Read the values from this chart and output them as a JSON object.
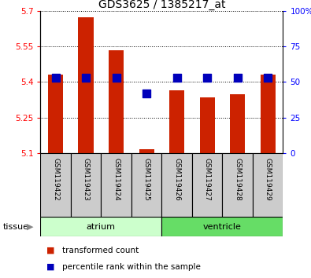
{
  "title": "GDS3625 / 1385217_at",
  "samples": [
    "GSM119422",
    "GSM119423",
    "GSM119424",
    "GSM119425",
    "GSM119426",
    "GSM119427",
    "GSM119428",
    "GSM119429"
  ],
  "red_values": [
    5.43,
    5.675,
    5.535,
    5.115,
    5.365,
    5.335,
    5.348,
    5.43
  ],
  "blue_values": [
    53,
    53,
    53,
    42,
    53,
    53,
    53,
    53
  ],
  "baseline": 5.1,
  "ylim_left": [
    5.1,
    5.7
  ],
  "ylim_right": [
    0,
    100
  ],
  "yticks_left": [
    5.1,
    5.25,
    5.4,
    5.55,
    5.7
  ],
  "yticks_right": [
    0,
    25,
    50,
    75,
    100
  ],
  "ytick_labels_left": [
    "5.1",
    "5.25",
    "5.4",
    "5.55",
    "5.7"
  ],
  "ytick_labels_right": [
    "0",
    "25",
    "50",
    "75",
    "100%"
  ],
  "groups": [
    {
      "name": "atrium",
      "indices": [
        0,
        1,
        2,
        3
      ],
      "color": "#ccffcc"
    },
    {
      "name": "ventricle",
      "indices": [
        4,
        5,
        6,
        7
      ],
      "color": "#66dd66"
    }
  ],
  "red_color": "#cc2200",
  "blue_color": "#0000bb",
  "bar_width": 0.5,
  "blue_marker_size": 7,
  "sample_box_color": "#cccccc",
  "tissue_label": "tissue",
  "legend_red": "transformed count",
  "legend_blue": "percentile rank within the sample"
}
